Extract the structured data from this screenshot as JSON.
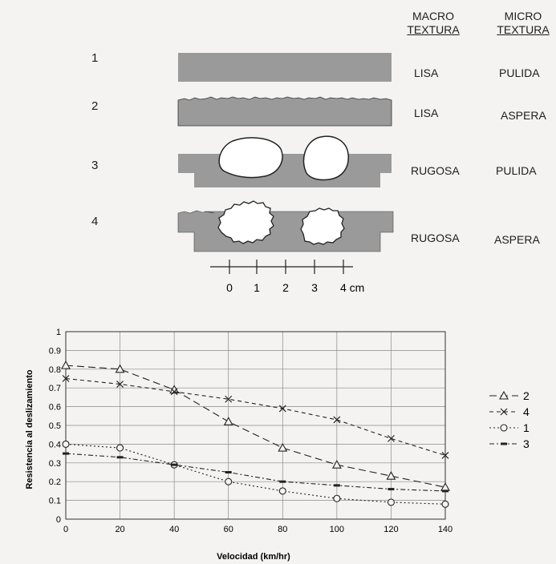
{
  "texture_table": {
    "headers": {
      "macro": [
        "MACRO",
        "TEXTURA"
      ],
      "micro": [
        "MICRO",
        "TEXTURA"
      ]
    },
    "rows": [
      {
        "number": "1",
        "macro": "LISA",
        "micro": "PULIDA"
      },
      {
        "number": "2",
        "macro": "LISA",
        "micro": "ASPERA"
      },
      {
        "number": "3",
        "macro": "RUGOSA",
        "micro": "PULIDA"
      },
      {
        "number": "4",
        "macro": "RUGOSA",
        "micro": "ASPERA"
      }
    ],
    "scale_labels": [
      "0",
      "1",
      "2",
      "3",
      "4 cm"
    ],
    "fill_color": "#9a9a9a"
  },
  "chart_data": {
    "type": "line",
    "title": "",
    "xlabel": "Velocidad (km/hr)",
    "ylabel": "Resistencia al deslizamiento",
    "x": [
      0,
      20,
      40,
      60,
      80,
      100,
      120,
      140
    ],
    "xlim": [
      0,
      140
    ],
    "ylim": [
      0,
      1
    ],
    "x_ticks": [
      "0",
      "20",
      "40",
      "60",
      "80",
      "100",
      "120",
      "140"
    ],
    "y_ticks": [
      "0",
      "0.1",
      "0.2",
      "0.3",
      "0.4",
      "0.5",
      "0.6",
      "0.7",
      "0.8",
      "0.9",
      "1"
    ],
    "grid": true,
    "legend_position": "right",
    "series": [
      {
        "name": "2",
        "marker": "triangle",
        "style": "long-dash",
        "values": [
          0.82,
          0.8,
          0.69,
          0.52,
          0.38,
          0.29,
          0.23,
          0.17
        ]
      },
      {
        "name": "4",
        "marker": "x",
        "style": "dash",
        "values": [
          0.75,
          0.72,
          0.68,
          0.64,
          0.59,
          0.53,
          0.43,
          0.34
        ]
      },
      {
        "name": "1",
        "marker": "circle",
        "style": "dot",
        "values": [
          0.4,
          0.38,
          0.29,
          0.2,
          0.15,
          0.11,
          0.09,
          0.08
        ]
      },
      {
        "name": "3",
        "marker": "bar",
        "style": "dash-dot",
        "values": [
          0.35,
          0.33,
          0.29,
          0.25,
          0.2,
          0.18,
          0.16,
          0.15
        ]
      }
    ]
  }
}
